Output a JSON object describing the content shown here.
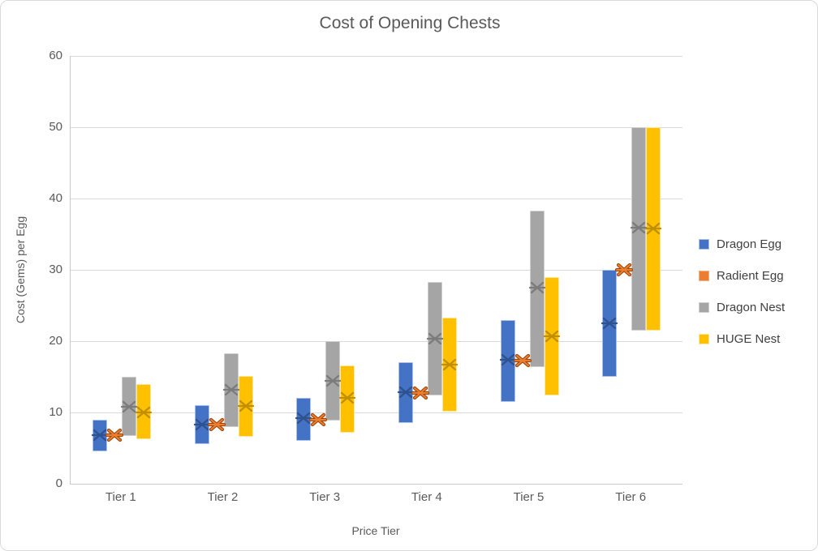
{
  "chart_data": {
    "type": "bar",
    "subtype": "floating-range-bars-with-mean-markers",
    "title": "Cost of Opening Chests",
    "xlabel": "Price Tier",
    "ylabel": "Cost (Gems) per Egg",
    "categories": [
      "Tier 1",
      "Tier 2",
      "Tier 3",
      "Tier 4",
      "Tier 5",
      "Tier 6"
    ],
    "ylim": [
      0,
      60
    ],
    "yticks": [
      0,
      10,
      20,
      30,
      40,
      50,
      60
    ],
    "grid": true,
    "legend_position": "right",
    "series": [
      {
        "name": "Dragon Egg",
        "color": "#4472C4",
        "border_color": "#A9C1E8",
        "marker_color": "#2F528F",
        "low": [
          4.5,
          5.6,
          6.0,
          8.5,
          11.5,
          15.0
        ],
        "high": [
          9.0,
          11.0,
          12.0,
          17.0,
          23.0,
          30.0
        ],
        "mean": [
          6.8,
          8.3,
          9.2,
          12.8,
          17.4,
          22.5
        ]
      },
      {
        "name": "Radient Egg",
        "color": "#ED7D31",
        "border_color": "#F4B183",
        "marker_color": "#ED7D31",
        "marker_outline": "#9C4A0B",
        "low": null,
        "high": null,
        "mean": [
          6.8,
          8.3,
          9.0,
          12.7,
          17.3,
          30.0
        ]
      },
      {
        "name": "Dragon Nest",
        "color": "#A5A5A5",
        "border_color": "#D0CECE",
        "marker_color": "#7B7B7B",
        "low": [
          6.7,
          8.0,
          8.9,
          12.4,
          16.4,
          21.5
        ],
        "high": [
          15.0,
          18.3,
          20.0,
          28.3,
          38.3,
          50.0
        ],
        "mean": [
          10.8,
          13.2,
          14.4,
          20.3,
          27.5,
          35.9
        ]
      },
      {
        "name": "HUGE Nest",
        "color": "#FFC000",
        "border_color": "#FFE699",
        "marker_color": "#BF8F00",
        "low": [
          6.2,
          6.6,
          7.2,
          10.1,
          12.4,
          21.5
        ],
        "high": [
          14.0,
          15.1,
          16.6,
          23.3,
          29.0,
          50.0
        ],
        "mean": [
          10.0,
          10.9,
          12.0,
          16.7,
          20.7,
          35.8
        ]
      }
    ]
  }
}
